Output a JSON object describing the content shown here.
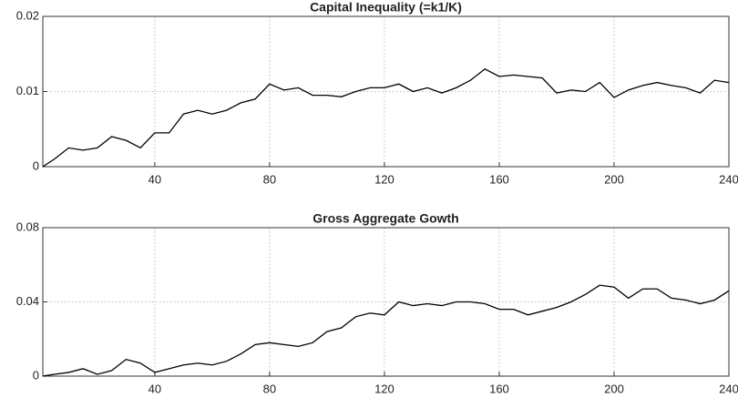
{
  "chart_data": [
    {
      "type": "line",
      "title": "Capital Inequality (=k1/K)",
      "x": [
        1,
        5,
        10,
        15,
        20,
        25,
        30,
        35,
        40,
        45,
        50,
        55,
        60,
        65,
        70,
        75,
        80,
        85,
        90,
        95,
        100,
        105,
        110,
        115,
        120,
        125,
        130,
        135,
        140,
        145,
        150,
        155,
        160,
        165,
        170,
        175,
        180,
        185,
        190,
        195,
        200,
        205,
        210,
        215,
        220,
        225,
        230,
        235,
        240
      ],
      "values": [
        0,
        0.001,
        0.0025,
        0.0022,
        0.0025,
        0.004,
        0.0035,
        0.0025,
        0.0045,
        0.0045,
        0.007,
        0.0075,
        0.007,
        0.0075,
        0.0085,
        0.009,
        0.011,
        0.0102,
        0.0105,
        0.0095,
        0.0095,
        0.0093,
        0.01,
        0.0105,
        0.0105,
        0.011,
        0.01,
        0.0105,
        0.0098,
        0.0105,
        0.0115,
        0.013,
        0.012,
        0.0122,
        0.012,
        0.0118,
        0.0098,
        0.0102,
        0.01,
        0.0112,
        0.0092,
        0.0102,
        0.0108,
        0.0112,
        0.0108,
        0.0105,
        0.0098,
        0.0115,
        0.0112
      ],
      "color": "#000000",
      "xlim": [
        1,
        240
      ],
      "xticks": [
        40,
        80,
        120,
        160,
        200,
        240
      ],
      "ylim": [
        0,
        0.02
      ],
      "yticks": [
        0,
        0.01,
        0.02
      ],
      "grid": true
    },
    {
      "type": "line",
      "title": "Gross Aggregate Gowth",
      "x": [
        1,
        5,
        10,
        15,
        20,
        25,
        30,
        35,
        40,
        45,
        50,
        55,
        60,
        65,
        70,
        75,
        80,
        85,
        90,
        95,
        100,
        105,
        110,
        115,
        120,
        125,
        130,
        135,
        140,
        145,
        150,
        155,
        160,
        165,
        170,
        175,
        180,
        185,
        190,
        195,
        200,
        205,
        210,
        215,
        220,
        225,
        230,
        235,
        240
      ],
      "values": [
        0,
        0.001,
        0.002,
        0.004,
        0.001,
        0.003,
        0.009,
        0.007,
        0.002,
        0.004,
        0.006,
        0.007,
        0.006,
        0.008,
        0.012,
        0.017,
        0.018,
        0.017,
        0.016,
        0.018,
        0.024,
        0.026,
        0.032,
        0.034,
        0.033,
        0.04,
        0.038,
        0.039,
        0.038,
        0.04,
        0.04,
        0.039,
        0.036,
        0.036,
        0.033,
        0.035,
        0.037,
        0.04,
        0.044,
        0.049,
        0.048,
        0.042,
        0.047,
        0.047,
        0.042,
        0.041,
        0.039,
        0.041,
        0.046
      ],
      "color": "#000000",
      "xlim": [
        1,
        240
      ],
      "xticks": [
        40,
        80,
        120,
        160,
        200,
        240
      ],
      "ylim": [
        0,
        0.08
      ],
      "yticks": [
        0,
        0.04,
        0.08
      ],
      "grid": true
    }
  ]
}
